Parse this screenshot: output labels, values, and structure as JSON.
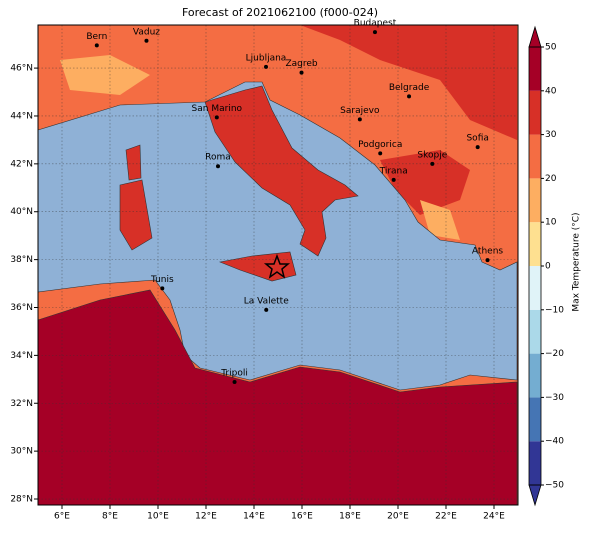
{
  "title": "Forecast of 2021062100 (f000-024)",
  "map": {
    "xlim": [
      5,
      25
    ],
    "ylim": [
      27.75,
      47.8
    ],
    "grid": true,
    "xticks": [
      {
        "value": 6,
        "label": "6°E"
      },
      {
        "value": 8,
        "label": "8°E"
      },
      {
        "value": 10,
        "label": "10°E"
      },
      {
        "value": 12,
        "label": "12°E"
      },
      {
        "value": 14,
        "label": "14°E"
      },
      {
        "value": 16,
        "label": "16°E"
      },
      {
        "value": 18,
        "label": "18°E"
      },
      {
        "value": 20,
        "label": "20°E"
      },
      {
        "value": 22,
        "label": "22°E"
      },
      {
        "value": 24,
        "label": "24°E"
      }
    ],
    "yticks": [
      {
        "value": 28,
        "label": "28°N"
      },
      {
        "value": 30,
        "label": "30°N"
      },
      {
        "value": 32,
        "label": "32°N"
      },
      {
        "value": 34,
        "label": "34°N"
      },
      {
        "value": 36,
        "label": "36°N"
      },
      {
        "value": 38,
        "label": "38°N"
      },
      {
        "value": 40,
        "label": "40°N"
      },
      {
        "value": 42,
        "label": "42°N"
      },
      {
        "value": 44,
        "label": "44°N"
      },
      {
        "value": 46,
        "label": "46°N"
      }
    ],
    "cities": [
      {
        "name": "Bern",
        "lon": 7.45,
        "lat": 46.95
      },
      {
        "name": "Vaduz",
        "lon": 9.52,
        "lat": 47.14
      },
      {
        "name": "Budapest",
        "lon": 19.04,
        "lat": 47.5
      },
      {
        "name": "Ljubljana",
        "lon": 14.5,
        "lat": 46.05
      },
      {
        "name": "Zagreb",
        "lon": 15.98,
        "lat": 45.81
      },
      {
        "name": "Belgrade",
        "lon": 20.46,
        "lat": 44.82
      },
      {
        "name": "San Marino",
        "lon": 12.45,
        "lat": 43.94
      },
      {
        "name": "Sarajevo",
        "lon": 18.41,
        "lat": 43.86
      },
      {
        "name": "Sofia",
        "lon": 23.32,
        "lat": 42.7
      },
      {
        "name": "Podgorica",
        "lon": 19.26,
        "lat": 42.44
      },
      {
        "name": "Skopje",
        "lon": 21.43,
        "lat": 42.0
      },
      {
        "name": "Roma",
        "lon": 12.5,
        "lat": 41.9
      },
      {
        "name": "Tirana",
        "lon": 19.82,
        "lat": 41.33
      },
      {
        "name": "Athens",
        "lon": 23.73,
        "lat": 37.98
      },
      {
        "name": "Tunis",
        "lon": 10.18,
        "lat": 36.8
      },
      {
        "name": "La Valette",
        "lon": 14.51,
        "lat": 35.9
      },
      {
        "name": "Tripoli",
        "lon": 13.19,
        "lat": 32.89
      }
    ]
  },
  "colorbar": {
    "label": "Max Temperature (°C)",
    "ticks": [
      {
        "value": -50,
        "label": "−50"
      },
      {
        "value": -40,
        "label": "−40"
      },
      {
        "value": -30,
        "label": "−30"
      },
      {
        "value": -20,
        "label": "−20"
      },
      {
        "value": -10,
        "label": "−10"
      },
      0,
      10,
      20,
      30,
      40,
      50
    ],
    "colors": [
      "#313695",
      "#4575b4",
      "#74add1",
      "#abd9e9",
      "#e0f3f8",
      "#fee090",
      "#fdae61",
      "#f46d43",
      "#d73027",
      "#a50026"
    ]
  }
}
